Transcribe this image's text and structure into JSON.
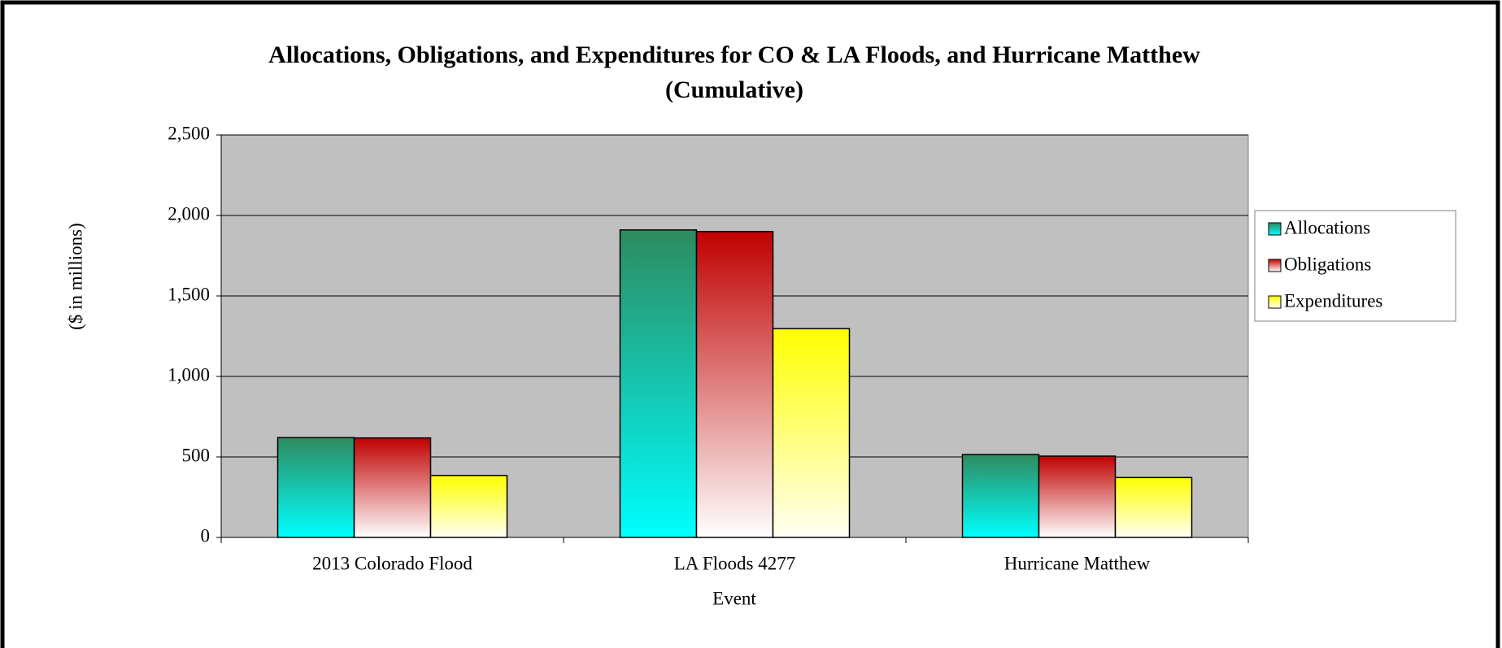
{
  "chart_data": {
    "type": "bar",
    "title": "Allocations, Obligations, and Expenditures for CO & LA Floods, and Hurricane Matthew",
    "subtitle": "(Cumulative)",
    "x_label": "Event",
    "y_label": "($ in millions)",
    "categories": [
      "2013 Colorado Flood",
      "LA Floods 4277",
      "Hurricane Matthew"
    ],
    "series": [
      {
        "name": "Allocations",
        "color": "#2e8b5f",
        "gradient_end": "#00ffff",
        "values": [
          620,
          1910,
          515
        ]
      },
      {
        "name": "Obligations",
        "color": "#c00000",
        "gradient_end": "#ffffff",
        "values": [
          618,
          1900,
          505
        ]
      },
      {
        "name": "Expenditures",
        "color": "#ffff00",
        "gradient_end": "#fffff4",
        "values": [
          385,
          1297,
          372
        ]
      }
    ],
    "ylim": [
      0,
      2500
    ],
    "yticks": [
      0,
      500,
      {
        "value": 1000,
        "label": "1,000"
      },
      {
        "value": 1500,
        "label": "1,500"
      },
      {
        "value": 2000,
        "label": "2,000"
      },
      {
        "value": 2500,
        "label": "2,500"
      }
    ],
    "grid": true,
    "legend": "right"
  }
}
